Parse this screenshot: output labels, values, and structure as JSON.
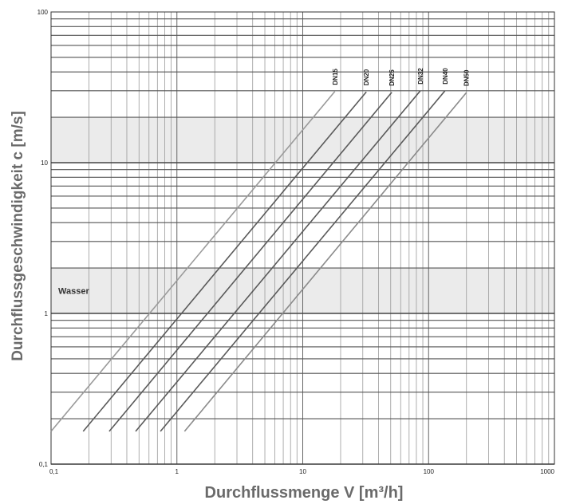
{
  "chart_data": {
    "type": "line",
    "xlabel": "Durchflussmenge V [m³/h]",
    "ylabel": "Durchflussgeschwindigkeit c [m/s]",
    "x_scale": "log",
    "y_scale": "log",
    "xlim": [
      0.1,
      1000
    ],
    "ylim": [
      0.1,
      100
    ],
    "x_ticks": [
      0.1,
      1,
      10,
      100,
      1000
    ],
    "x_tick_labels": [
      "0,1",
      "1",
      "10",
      "100",
      "1000"
    ],
    "y_ticks": [
      0.1,
      1,
      10,
      100
    ],
    "y_tick_labels": [
      "0,1",
      "1",
      "10",
      "100"
    ],
    "grid": true,
    "bands": [
      {
        "label": "Wasser",
        "y": [
          1,
          2
        ],
        "color": "#ebebeb"
      },
      {
        "label": "",
        "y": [
          10,
          20
        ],
        "color": "#ebebeb"
      }
    ],
    "series": [
      {
        "name": "DN15",
        "x": [
          0.1,
          18
        ],
        "y": [
          0.165,
          29.7
        ],
        "color": "#9a9a9a"
      },
      {
        "name": "DN20",
        "x": [
          0.18,
          32
        ],
        "y": [
          0.165,
          29.5
        ],
        "color": "#5a5a5a"
      },
      {
        "name": "DN25",
        "x": [
          0.29,
          51
        ],
        "y": [
          0.165,
          29.3
        ],
        "color": "#5a5a5a"
      },
      {
        "name": "DN32",
        "x": [
          0.47,
          86
        ],
        "y": [
          0.165,
          30.0
        ],
        "color": "#5a5a5a"
      },
      {
        "name": "DN40",
        "x": [
          0.74,
          135
        ],
        "y": [
          0.165,
          30.0
        ],
        "color": "#5a5a5a"
      },
      {
        "name": "DN50",
        "x": [
          1.15,
          200
        ],
        "y": [
          0.165,
          29.2
        ],
        "color": "#8a8a8a"
      }
    ]
  }
}
